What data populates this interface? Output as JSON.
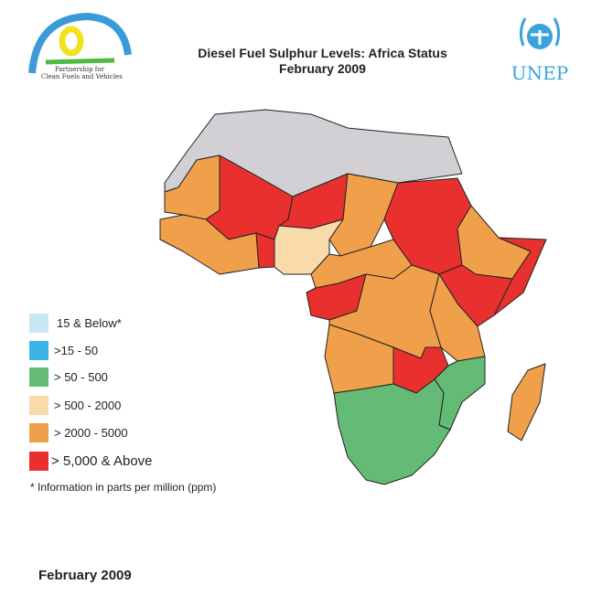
{
  "header": {
    "title": "Diesel Fuel Sulphur Levels: Africa Status",
    "subtitle": "February 2009"
  },
  "logos": {
    "left": "Partnership for Clean Fuels and Vehicles",
    "right": "UNEP"
  },
  "legend": {
    "items": [
      {
        "label": "15 & Below*",
        "color": "#c9e6f4"
      },
      {
        "label": ">15 - 50",
        "color": "#3db4e8"
      },
      {
        "label": "> 50 - 500",
        "color": "#63bb76"
      },
      {
        "label": "> 500 - 2000",
        "color": "#f8dba8"
      },
      {
        "label": "> 2000 - 5000",
        "color": "#f0a04b"
      },
      {
        "label": "> 5,000 & Above",
        "color": "#e8302f"
      }
    ],
    "note": "* Information in parts per million (ppm)"
  },
  "map": {
    "no_data_color": "#d2d0d4",
    "border_color": "#222222"
  },
  "footer": {
    "date": "February 2009"
  }
}
